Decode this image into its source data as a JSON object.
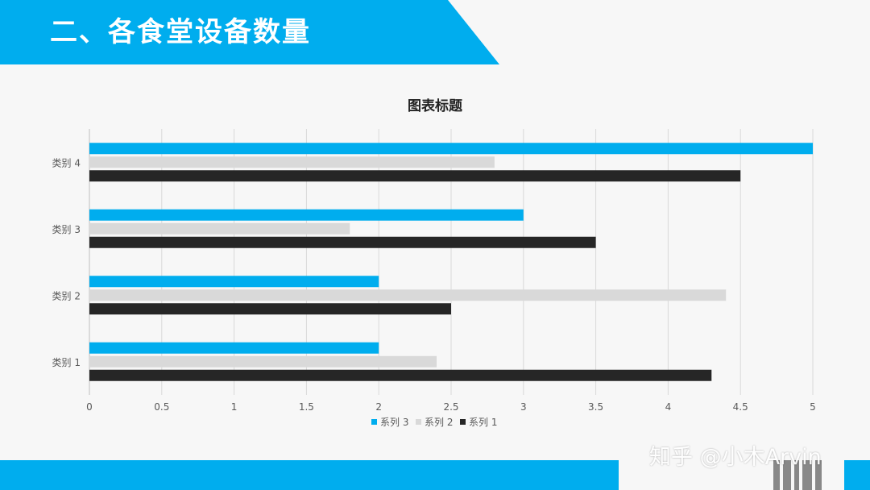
{
  "slide": {
    "title": "二、各食堂设备数量",
    "watermark": "知乎 @小木Arvin"
  },
  "colors": {
    "accent": "#00adee",
    "series1": "#262626",
    "series2": "#d9d9d9",
    "series3": "#00adee",
    "gridline": "#d9d9d9",
    "axis_text": "#595959"
  },
  "chart_data": {
    "type": "bar",
    "orientation": "horizontal",
    "title": "图表标题",
    "categories": [
      "类别 1",
      "类别 2",
      "类别 3",
      "类别 4"
    ],
    "series": [
      {
        "name": "系列 1",
        "values": [
          4.3,
          2.5,
          3.5,
          4.5
        ],
        "color": "#262626"
      },
      {
        "name": "系列 2",
        "values": [
          2.4,
          4.4,
          1.8,
          2.8
        ],
        "color": "#d9d9d9"
      },
      {
        "name": "系列 3",
        "values": [
          2.0,
          2.0,
          3.0,
          5.0
        ],
        "color": "#00adee"
      }
    ],
    "xlim": [
      0,
      5
    ],
    "x_ticks": [
      "0",
      "0.5",
      "1",
      "1.5",
      "2",
      "2.5",
      "3",
      "3.5",
      "4",
      "4.5",
      "5"
    ],
    "xlabel": "",
    "ylabel": "",
    "grid": "vertical",
    "legend": "bottom",
    "legend_order": [
      "系列 3",
      "系列 2",
      "系列 1"
    ]
  }
}
